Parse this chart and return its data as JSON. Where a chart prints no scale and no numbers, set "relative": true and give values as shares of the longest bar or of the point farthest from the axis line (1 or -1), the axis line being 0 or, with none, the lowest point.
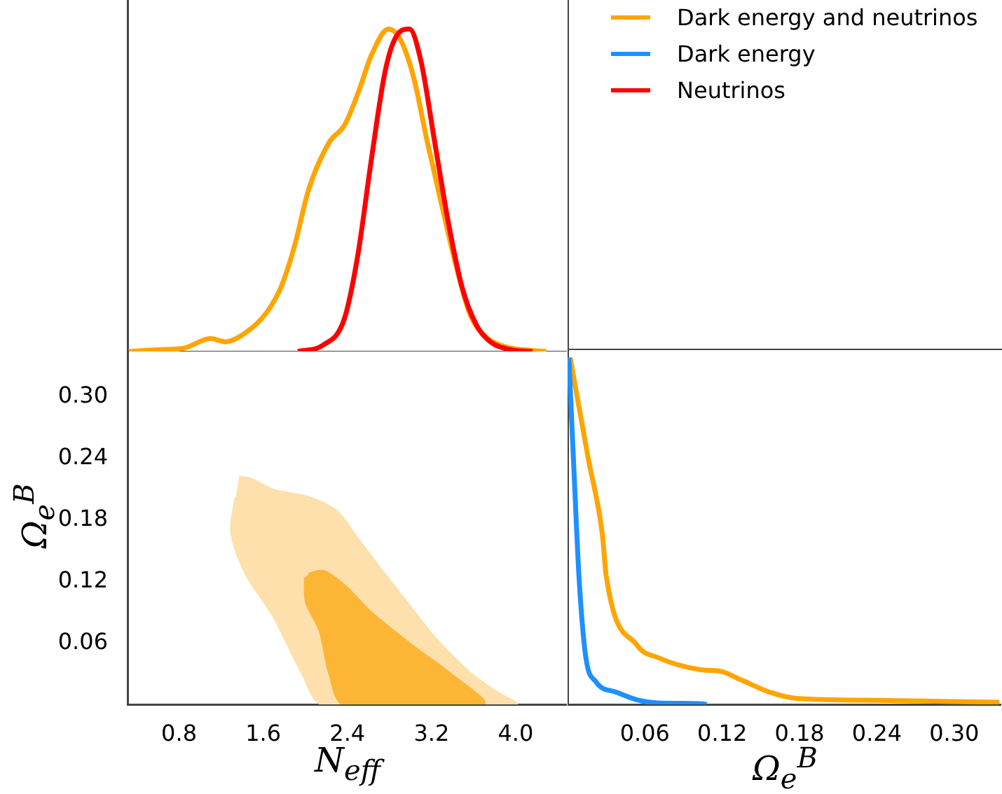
{
  "chart_data": [
    {
      "type": "line",
      "relative": true,
      "xlim": [
        0.31,
        4.48
      ],
      "tick_labels": false,
      "legend": "right",
      "series": [
        {
          "name": "Dark energy and neutrinos",
          "color": "#ffa500",
          "x": [
            0.32,
            0.57,
            0.84,
            1.1,
            1.24,
            1.44,
            1.63,
            1.77,
            1.9,
            2.03,
            2.23,
            2.37,
            2.5,
            2.63,
            2.79,
            2.9,
            3.03,
            3.16,
            3.3,
            3.43,
            3.56,
            3.7,
            3.9,
            4.16,
            4.29
          ],
          "values": [
            0,
            0.005,
            0.01,
            0.04,
            0.03,
            0.06,
            0.12,
            0.2,
            0.33,
            0.5,
            0.65,
            0.7,
            0.8,
            0.92,
            1,
            0.97,
            0.85,
            0.65,
            0.45,
            0.27,
            0.12,
            0.05,
            0.015,
            0.003,
            0
          ]
        },
        {
          "name": "Neutrinos",
          "color": "#ff0000",
          "x": [
            1.93,
            2.17,
            2.37,
            2.5,
            2.63,
            2.76,
            2.87,
            2.99,
            3.1,
            3.23,
            3.36,
            3.49,
            3.63,
            3.76,
            3.96,
            4.16
          ],
          "values": [
            0,
            0.02,
            0.1,
            0.3,
            0.6,
            0.87,
            0.98,
            1,
            0.9,
            0.65,
            0.4,
            0.2,
            0.08,
            0.03,
            0.005,
            0
          ]
        }
      ]
    },
    {
      "type": "area",
      "xlabel": "N$_{eff}$",
      "ylabel": "Ω$_{e}$$^{B}$",
      "xlim": [
        0.31,
        4.48
      ],
      "ylim": [
        0,
        0.345
      ],
      "xticks": [
        0.8,
        1.6,
        2.4,
        3.2,
        {
          "value": 4,
          "label": "4.0"
        }
      ],
      "yticks": [
        0.06,
        0.12,
        0.18,
        0.24,
        {
          "value": 0.3,
          "label": "0.30"
        }
      ],
      "series": [
        {
          "color": "#fde0ac",
          "x": [
            1.37,
            1.48,
            1.7,
            2.03,
            2.3,
            2.5,
            2.7,
            2.96,
            3.23,
            3.56,
            3.83,
            4.0,
            2.17,
            1.97,
            1.7,
            1.44,
            1.3,
            1.34
          ],
          "values": [
            0.222,
            0.22,
            0.209,
            0.202,
            0.188,
            0.161,
            0.134,
            0.1,
            0.065,
            0.031,
            0.011,
            0,
            0,
            0.031,
            0.086,
            0.127,
            0.168,
            0.202
          ]
        },
        {
          "color": "#fdb536",
          "x": [
            2.03,
            2.17,
            2.37,
            2.63,
            3.03,
            3.36,
            3.69,
            2.37,
            2.23,
            2.14,
            2.01,
            2.0
          ],
          "values": [
            0.127,
            0.13,
            0.116,
            0.089,
            0.056,
            0.031,
            0,
            0,
            0.031,
            0.072,
            0.1,
            0.124
          ]
        }
      ]
    },
    {
      "type": "line",
      "relative": true,
      "xlabel": "Ω$_{e}$$^{B}$",
      "xlim": [
        0,
        0.336
      ],
      "tick_labels": "x",
      "xticks": [
        0.06,
        0.12,
        0.18,
        0.24,
        {
          "value": 0.3,
          "label": "0.30"
        }
      ],
      "series": [
        {
          "color": "#ffa500",
          "x": [
            0.002,
            0.016,
            0.027,
            0.03,
            0.054,
            0.07,
            0.103,
            0.119,
            0.135,
            0.157,
            0.178,
            0.232,
            0.335
          ],
          "values": [
            1,
            0.71,
            0.49,
            0.37,
            0.17,
            0.135,
            0.1,
            0.095,
            0.07,
            0.035,
            0.017,
            0.012,
            0.006
          ]
        },
        {
          "name": "Dark energy",
          "color": "#1e90ff",
          "x": [
            0.001,
            0.005,
            0.009,
            0.014,
            0.022,
            0.038,
            0.054,
            0.07,
            0.103,
            0.108
          ],
          "values": [
            1,
            0.67,
            0.36,
            0.14,
            0.065,
            0.035,
            0.013,
            0.004,
            0.002,
            0
          ]
        }
      ]
    }
  ]
}
